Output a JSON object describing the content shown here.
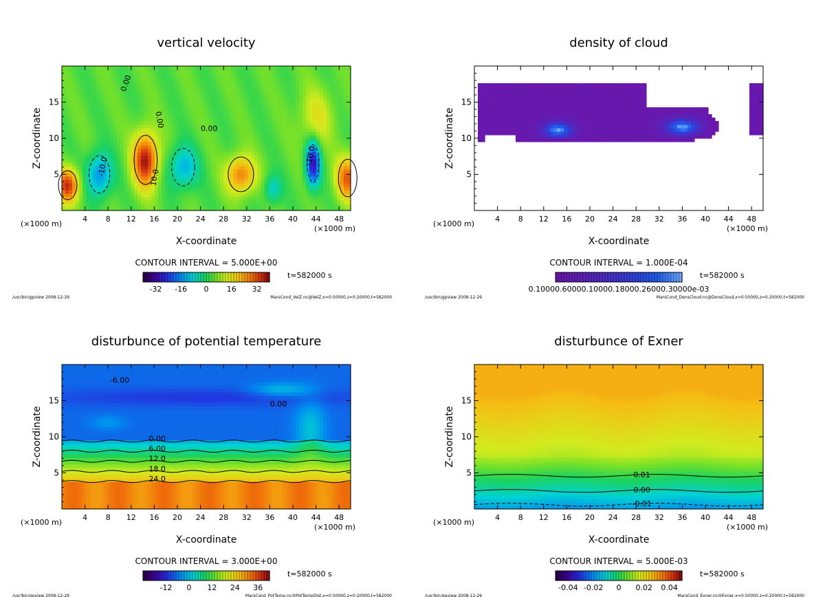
{
  "chart_data": [
    {
      "type": "heatmap",
      "title": "vertical velocity",
      "xlabel": "X-coordinate",
      "ylabel": "Z-coordinate",
      "xlim": [
        0,
        50
      ],
      "ylim": [
        0,
        20
      ],
      "xticks": [
        4,
        8,
        12,
        16,
        20,
        24,
        28,
        32,
        36,
        40,
        44,
        48
      ],
      "yticks": [
        5,
        10,
        15
      ],
      "unit_left": "(×1000 m)",
      "unit_right": "(×1000 m)",
      "contour_interval": "CONTOUR INTERVAL = 5.000E+00",
      "colorbar_ticks": [
        "-32",
        "-16",
        "0",
        "16",
        "32"
      ],
      "colorbar_min": -40,
      "colorbar_max": 40,
      "colormap": "rainbow",
      "contour_labels": [
        "0.00",
        "0.00",
        "-10.0",
        "10.0",
        "0.00",
        "-10.0"
      ],
      "time": "t=582000 s",
      "footer_left": "/usr/bin/gpview   2008-12-29",
      "footer_right": "MarsCond_VelZ.nc@VelZ,x=0:50000,z=0:20000,t=582000"
    },
    {
      "type": "heatmap",
      "title": "density of cloud",
      "xlabel": "X-coordinate",
      "ylabel": "Z-coordinate",
      "xlim": [
        0,
        50
      ],
      "ylim": [
        0,
        20
      ],
      "xticks": [
        4,
        8,
        12,
        16,
        20,
        24,
        28,
        32,
        36,
        40,
        44,
        48
      ],
      "yticks": [
        5,
        10,
        15
      ],
      "unit_left": "(×1000 m)",
      "unit_right": "(×1000 m)",
      "contour_interval": "CONTOUR INTERVAL = 1.000E-04",
      "colorbar_ticks": [
        "0.10000.60000.10000.18000.26000.30000e-03"
      ],
      "colorbar_min": 0,
      "colorbar_max": 0.001,
      "colormap": "purple-blue",
      "time": "t=582000 s",
      "footer_left": "/usr/bin/gpview   2008-12-29",
      "footer_right": "MarsCond_DensCloud.nc@DensCloud,x=0:50000,z=0:20000,t=582000"
    },
    {
      "type": "heatmap",
      "title": "disturbunce of potential temperature",
      "xlabel": "X-coordinate",
      "ylabel": "Z-coordinate",
      "xlim": [
        0,
        50
      ],
      "ylim": [
        0,
        20
      ],
      "xticks": [
        4,
        8,
        12,
        16,
        20,
        24,
        28,
        32,
        36,
        40,
        44,
        48
      ],
      "yticks": [
        5,
        10,
        15
      ],
      "unit_left": "(×1000 m)",
      "unit_right": "(×1000 m)",
      "contour_interval": "CONTOUR INTERVAL = 3.000E+00",
      "colorbar_ticks": [
        "-12",
        "0",
        "12",
        "24",
        "36"
      ],
      "colorbar_min": -24,
      "colorbar_max": 42,
      "colormap": "rainbow",
      "contour_labels": [
        "-6.00",
        "0.00",
        "0.00",
        "6.00",
        "12.0",
        "18.0",
        "24.0"
      ],
      "time": "t=582000 s",
      "footer_left": "/usr/bin/gpview   2008-12-29",
      "footer_right": "MarsCond_PotTemp.nc@PotTempDist,x=0:50000,z=0:20000,t=582000"
    },
    {
      "type": "heatmap",
      "title": "disturbunce of Exner",
      "xlabel": "X-coordinate",
      "ylabel": "Z-coordinate",
      "xlim": [
        0,
        50
      ],
      "ylim": [
        0,
        20
      ],
      "xticks": [
        4,
        8,
        12,
        16,
        20,
        24,
        28,
        32,
        36,
        40,
        44,
        48
      ],
      "yticks": [
        5,
        10,
        15
      ],
      "unit_left": "(×1000 m)",
      "unit_right": "(×1000 m)",
      "contour_interval": "CONTOUR INTERVAL = 5.000E-03",
      "colorbar_ticks": [
        "-0.04",
        "-0.02",
        "0",
        "0.02",
        "0.04"
      ],
      "colorbar_min": -0.05,
      "colorbar_max": 0.05,
      "colormap": "rainbow",
      "contour_labels": [
        "0.01",
        "0.00",
        "-0.01"
      ],
      "time": "t=582000 s",
      "footer_left": "/usr/bin/gpview   2008-12-29",
      "footer_right": "MarsCond_Exner.nc@Exner,x=0:50000,z=0:20000,t=582000"
    }
  ]
}
